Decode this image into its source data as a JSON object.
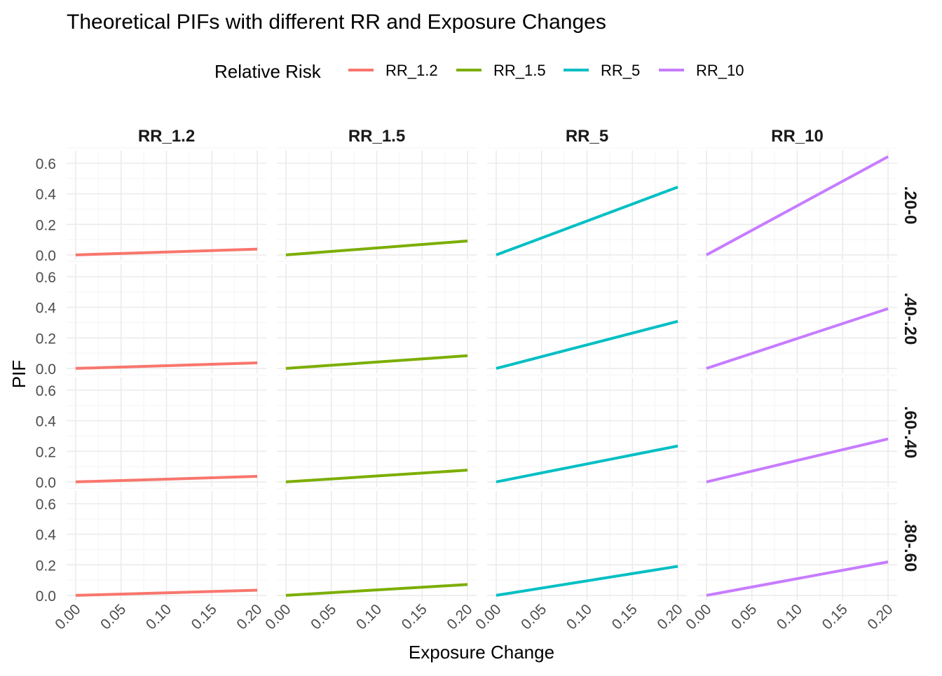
{
  "chart_data": {
    "type": "line",
    "title": "Theoretical PIFs with different RR and Exposure Changes",
    "xlabel": "Exposure Change",
    "ylabel": "PIF",
    "legend": {
      "title": "Relative Risk",
      "position": "top"
    },
    "xlim": [
      0.0,
      0.2
    ],
    "ylim": [
      0.0,
      0.65
    ],
    "x_ticks": [
      "0.00",
      "0.05",
      "0.10",
      "0.15",
      "0.20"
    ],
    "y_ticks": [
      "0.0",
      "0.2",
      "0.4",
      "0.6"
    ],
    "grid": true,
    "column_facets": [
      "RR_1.2",
      "RR_1.5",
      "RR_5",
      "RR_10"
    ],
    "row_facets": [
      ".20-0",
      ".40-.20",
      ".60-.40",
      ".80-.60"
    ],
    "series": [
      {
        "name": "RR_1.2",
        "color": "#F8766D"
      },
      {
        "name": "RR_1.5",
        "color": "#7CAE00"
      },
      {
        "name": "RR_5",
        "color": "#00BFC4"
      },
      {
        "name": "RR_10",
        "color": "#C77CFF"
      }
    ],
    "x": [
      0.0,
      0.2
    ],
    "panels": [
      {
        "row": ".20-0",
        "col": "RR_1.2",
        "values": [
          0.0,
          0.038
        ]
      },
      {
        "row": ".20-0",
        "col": "RR_1.5",
        "values": [
          0.0,
          0.091
        ]
      },
      {
        "row": ".20-0",
        "col": "RR_5",
        "values": [
          0.0,
          0.444
        ]
      },
      {
        "row": ".20-0",
        "col": "RR_10",
        "values": [
          0.0,
          0.643
        ]
      },
      {
        "row": ".40-.20",
        "col": "RR_1.2",
        "values": [
          0.0,
          0.036
        ]
      },
      {
        "row": ".40-.20",
        "col": "RR_1.5",
        "values": [
          0.0,
          0.083
        ]
      },
      {
        "row": ".40-.20",
        "col": "RR_5",
        "values": [
          0.0,
          0.308
        ]
      },
      {
        "row": ".40-.20",
        "col": "RR_10",
        "values": [
          0.0,
          0.391
        ]
      },
      {
        "row": ".60-.40",
        "col": "RR_1.2",
        "values": [
          0.0,
          0.036
        ]
      },
      {
        "row": ".60-.40",
        "col": "RR_1.5",
        "values": [
          0.0,
          0.077
        ]
      },
      {
        "row": ".60-.40",
        "col": "RR_5",
        "values": [
          0.0,
          0.235
        ]
      },
      {
        "row": ".60-.40",
        "col": "RR_10",
        "values": [
          0.0,
          0.281
        ]
      },
      {
        "row": ".80-.60",
        "col": "RR_1.2",
        "values": [
          0.0,
          0.034
        ]
      },
      {
        "row": ".80-.60",
        "col": "RR_1.5",
        "values": [
          0.0,
          0.071
        ]
      },
      {
        "row": ".80-.60",
        "col": "RR_5",
        "values": [
          0.0,
          0.19
        ]
      },
      {
        "row": ".80-.60",
        "col": "RR_10",
        "values": [
          0.0,
          0.219
        ]
      }
    ]
  }
}
